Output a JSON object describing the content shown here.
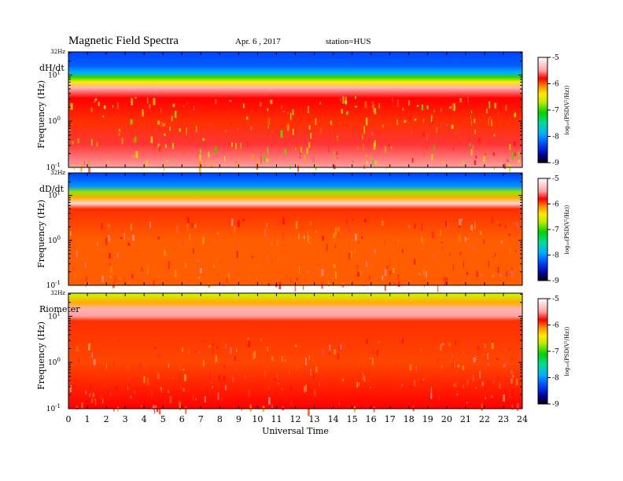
{
  "figure": {
    "title": "Magnetic  Field  Spectra",
    "date": "Apr. 6  , 2017",
    "station": "station=HUS"
  },
  "chart_data": [
    {
      "type": "heatmap",
      "panel_label": "dH/dt",
      "ylabel": "Frequency  (Hz)",
      "xlabel": "",
      "xlim": [
        0,
        24
      ],
      "ylim_log10": [
        -1,
        1.5
      ],
      "y_top_label": "32Hz",
      "y_ticks": [
        {
          "exp": "-1",
          "v": -1
        },
        {
          "exp": "0",
          "v": 0
        },
        {
          "exp": "1",
          "v": 1
        }
      ],
      "colorbar": {
        "label": "log₁₀(PSD(V²/Hz))",
        "range": [
          -9,
          -5
        ],
        "ticks": [
          "-5",
          "-6",
          "-7",
          "-8",
          "-9"
        ]
      },
      "log10_psd_profile": [
        {
          "log10_f": 1.45,
          "v": -8.3
        },
        {
          "log10_f": 1.2,
          "v": -8.2
        },
        {
          "log10_f": 1.05,
          "v": -7.9
        },
        {
          "log10_f": 0.95,
          "v": -7.0
        },
        {
          "log10_f": 0.85,
          "v": -6.4
        },
        {
          "log10_f": 0.72,
          "v": -5.4
        },
        {
          "log10_f": 0.5,
          "v": -5.8
        },
        {
          "log10_f": 0.0,
          "v": -5.9
        },
        {
          "log10_f": -0.5,
          "v": -5.7
        },
        {
          "log10_f": -1.0,
          "v": -5.5
        }
      ]
    },
    {
      "type": "heatmap",
      "panel_label": "dD/dt",
      "ylabel": "Frequency  (Hz)",
      "xlabel": "",
      "xlim": [
        0,
        24
      ],
      "ylim_log10": [
        -1,
        1.5
      ],
      "y_top_label": "32Hz",
      "y_ticks": [
        {
          "exp": "-1",
          "v": -1
        },
        {
          "exp": "0",
          "v": 0
        },
        {
          "exp": "1",
          "v": 1
        }
      ],
      "colorbar": {
        "label": "log₁₀(PSD(V²/Hz))",
        "range": [
          -9,
          -5
        ],
        "ticks": [
          "-5",
          "-6",
          "-7",
          "-8",
          "-9"
        ]
      },
      "log10_psd_profile": [
        {
          "log10_f": 1.45,
          "v": -8.3
        },
        {
          "log10_f": 1.2,
          "v": -8.0
        },
        {
          "log10_f": 1.08,
          "v": -6.8
        },
        {
          "log10_f": 0.95,
          "v": -6.2
        },
        {
          "log10_f": 0.82,
          "v": -5.2
        },
        {
          "log10_f": 0.7,
          "v": -5.9
        },
        {
          "log10_f": 0.0,
          "v": -6.0
        },
        {
          "log10_f": -1.0,
          "v": -6.0
        }
      ]
    },
    {
      "type": "heatmap",
      "panel_label": "Riometer",
      "ylabel": "Frequency  (Hz)",
      "xlabel": "Universal Time",
      "xlim": [
        0,
        24
      ],
      "x_ticks": [
        "0",
        "1",
        "2",
        "3",
        "4",
        "5",
        "6",
        "7",
        "8",
        "9",
        "10",
        "11",
        "12",
        "13",
        "14",
        "15",
        "16",
        "17",
        "18",
        "19",
        "20",
        "21",
        "22",
        "23",
        "24"
      ],
      "ylim_log10": [
        -1,
        1.5
      ],
      "y_top_label": "32Hz",
      "y_ticks": [
        {
          "exp": "-1",
          "v": -1
        },
        {
          "exp": "0",
          "v": 0
        },
        {
          "exp": "1",
          "v": 1
        }
      ],
      "colorbar": {
        "label": "log₁₀(PSD(V²/Hz))",
        "range": [
          -9,
          -5
        ],
        "ticks": [
          "-5",
          "-6",
          "-7",
          "-8",
          "-9"
        ]
      },
      "log10_psd_profile": [
        {
          "log10_f": 1.45,
          "v": -6.6
        },
        {
          "log10_f": 1.3,
          "v": -6.2
        },
        {
          "log10_f": 1.15,
          "v": -5.4
        },
        {
          "log10_f": 1.0,
          "v": -5.5
        },
        {
          "log10_f": 0.9,
          "v": -5.9
        },
        {
          "log10_f": 0.0,
          "v": -5.95
        },
        {
          "log10_f": -1.0,
          "v": -5.8
        }
      ]
    }
  ]
}
